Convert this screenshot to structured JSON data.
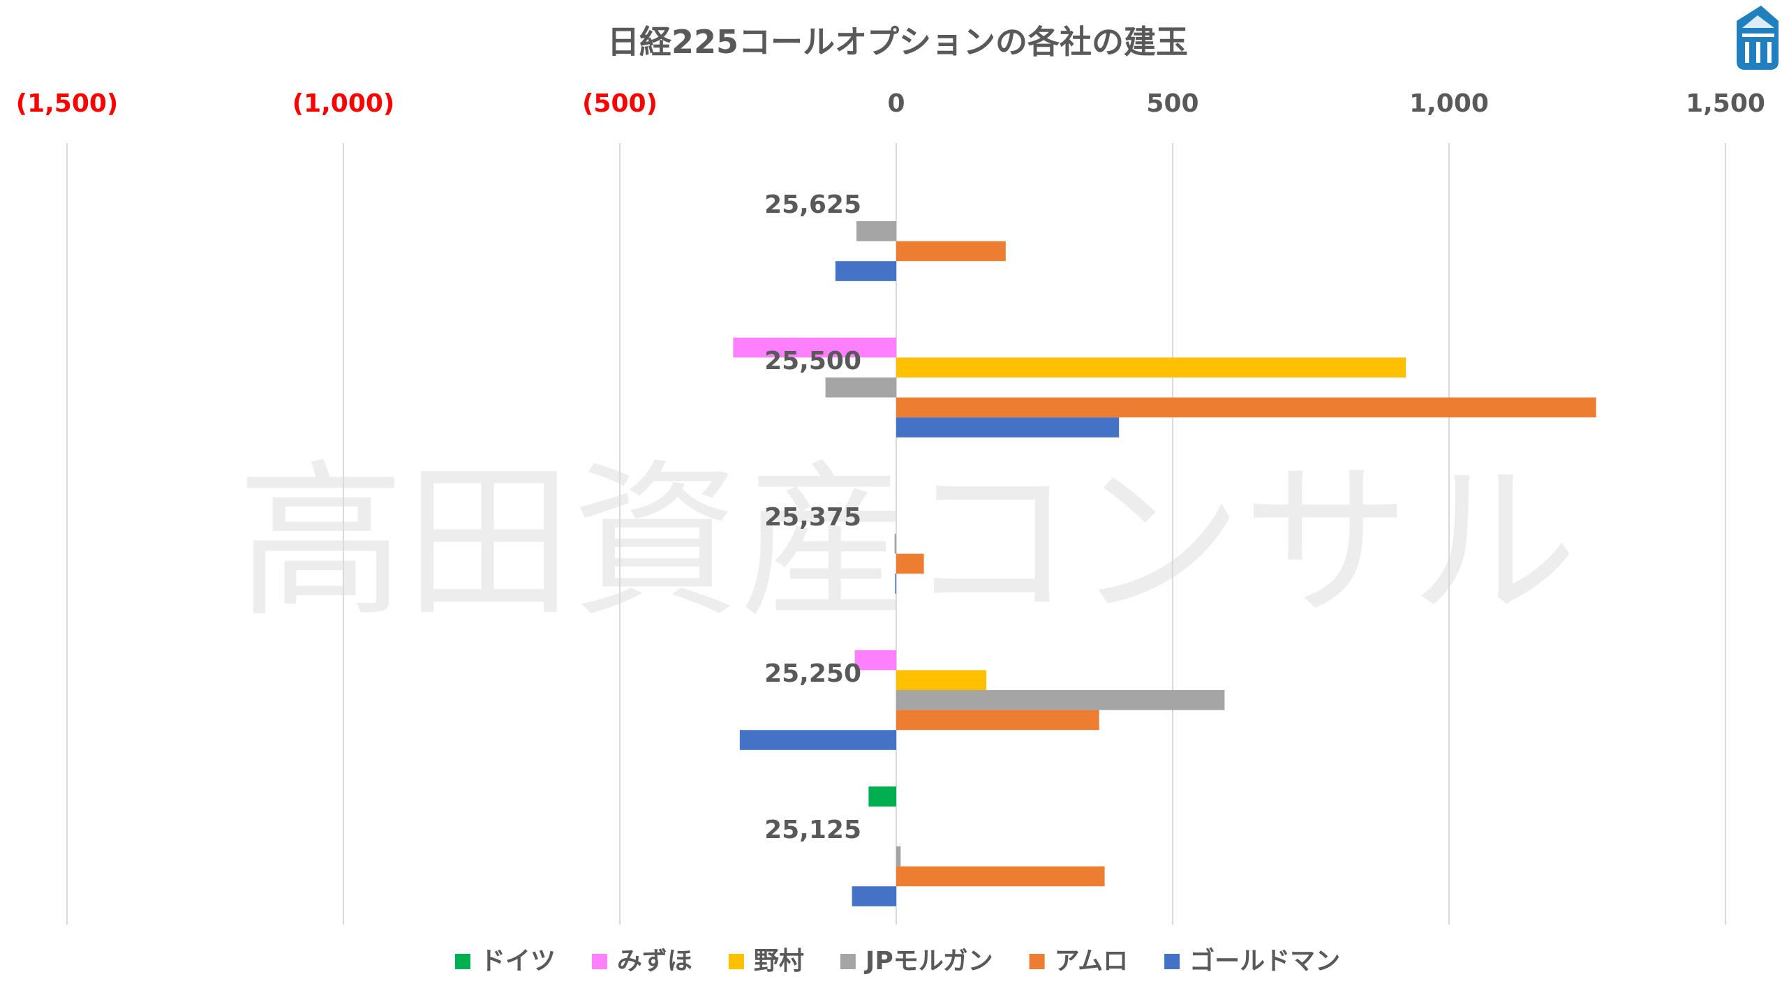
{
  "chart_data": {
    "type": "bar",
    "orientation": "horizontal",
    "title": "日経225コールオプションの各社の建玉",
    "watermark": "高田資産コンサル",
    "xlim": [
      -1500,
      1500
    ],
    "x_ticks": [
      {
        "value": -1500,
        "label": "(1,500)"
      },
      {
        "value": -1000,
        "label": "(1,000)"
      },
      {
        "value": -500,
        "label": "(500)"
      },
      {
        "value": 0,
        "label": "0"
      },
      {
        "value": 500,
        "label": "500"
      },
      {
        "value": 1000,
        "label": "1,000"
      },
      {
        "value": 1500,
        "label": "1,500"
      }
    ],
    "negative_tick_color": "#ff0000",
    "positive_tick_color": "#595959",
    "grid": true,
    "legend_position": "bottom",
    "categories": [
      "25,625",
      "25,500",
      "25,375",
      "25,250",
      "25,125"
    ],
    "series": [
      {
        "name": "ドイツ",
        "color": "#00b050",
        "values": [
          0,
          0,
          0,
          0,
          -50
        ]
      },
      {
        "name": "みずほ",
        "color": "#ff80ff",
        "values": [
          0,
          -295,
          0,
          -75,
          0
        ]
      },
      {
        "name": "野村",
        "color": "#ffc000",
        "values": [
          0,
          922,
          0,
          163,
          0
        ]
      },
      {
        "name": "JPモルガン",
        "color": "#a5a5a5",
        "values": [
          -72,
          -128,
          -3,
          594,
          8
        ]
      },
      {
        "name": "アムロ",
        "color": "#ed7d31",
        "values": [
          198,
          1266,
          50,
          367,
          377
        ]
      },
      {
        "name": "ゴールドマン",
        "color": "#4472c4",
        "values": [
          -110,
          403,
          -2,
          -283,
          -80
        ]
      }
    ]
  }
}
